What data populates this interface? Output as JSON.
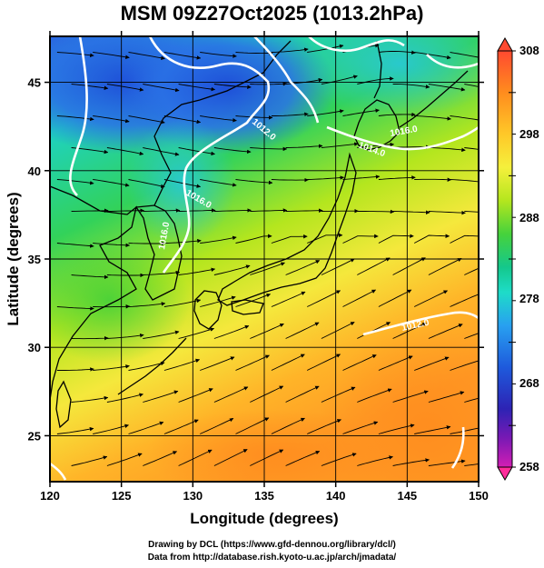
{
  "title": "MSM 09Z27Oct2025 (1013.2hPa)",
  "axes": {
    "xlabel": "Longitude (degrees)",
    "ylabel": "Latitude  (degrees)",
    "x_ticks": [
      "120",
      "125",
      "130",
      "135",
      "140",
      "145",
      "150"
    ],
    "y_ticks": [
      "25",
      "30",
      "35",
      "40",
      "45"
    ],
    "xlim": [
      120,
      150
    ],
    "ylim": [
      22.4,
      47.6
    ]
  },
  "colorbar": {
    "min": 258,
    "max": 308,
    "labels": [
      "308",
      "298",
      "288",
      "278",
      "268",
      "258"
    ],
    "colors": [
      "#ff4a30",
      "#ff8c1e",
      "#ffc828",
      "#f5f03c",
      "#b4e61e",
      "#46d23c",
      "#14c88c",
      "#1edcc8",
      "#28a0f0",
      "#1e5adc",
      "#2d23b4",
      "#7819b4",
      "#d21eb4"
    ]
  },
  "contours": [
    {
      "label": "1016.0"
    },
    {
      "label": "1016.0"
    },
    {
      "label": "1012.0"
    },
    {
      "label": "1014.0"
    },
    {
      "label": "1016.0"
    },
    {
      "label": "1012.0"
    }
  ],
  "credits": {
    "line1": "Drawing by DCL (https://www.gfd-dennou.org/library/dcl/)",
    "line2": "Data from http://database.rish.kyoto-u.ac.jp/arch/jmadata/"
  }
}
